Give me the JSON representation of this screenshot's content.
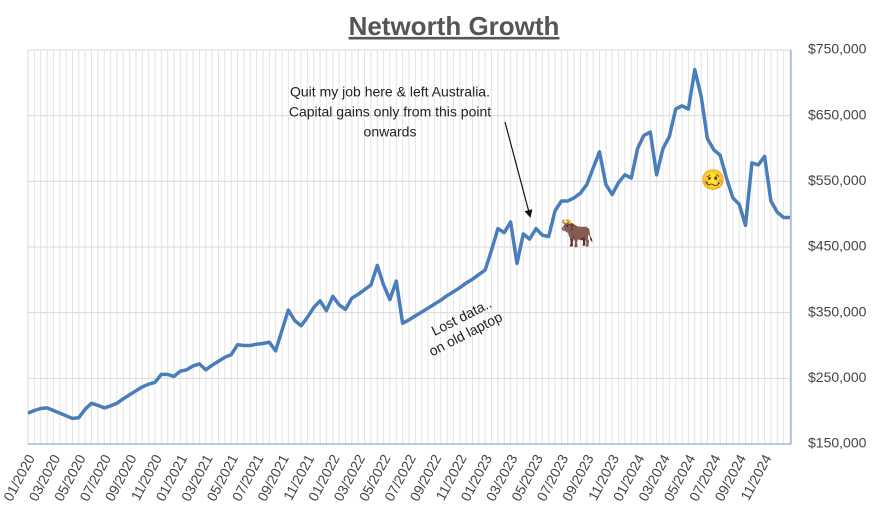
{
  "chart_data": {
    "type": "line",
    "title": "Networth Growth",
    "categories": [
      "01/2020",
      null,
      null,
      null,
      "03/2020",
      null,
      null,
      null,
      "05/2020",
      null,
      null,
      null,
      "07/2020",
      null,
      null,
      null,
      "09/2020",
      null,
      null,
      null,
      "11/2020",
      null,
      null,
      null,
      "01/2021",
      null,
      null,
      null,
      "03/2021",
      null,
      null,
      null,
      "05/2021",
      null,
      null,
      null,
      "07/2021",
      null,
      null,
      null,
      "09/2021",
      null,
      null,
      null,
      "11/2021",
      null,
      null,
      null,
      "01/2022",
      null,
      null,
      null,
      "03/2022",
      null,
      null,
      null,
      "05/2022",
      null,
      null,
      null,
      "07/2022",
      null,
      null,
      null,
      "09/2022",
      null,
      null,
      null,
      "11/2022",
      null,
      null,
      null,
      "01/2023",
      null,
      null,
      null,
      "03/2023",
      null,
      null,
      null,
      "05/2023",
      null,
      null,
      null,
      "07/2023",
      null,
      null,
      null,
      "09/2023",
      null,
      null,
      null,
      "11/2023",
      null,
      null,
      null,
      "01/2024",
      null,
      null,
      null,
      "03/2024",
      null,
      null,
      null,
      "05/2024",
      null,
      null,
      null,
      "07/2024",
      null,
      null,
      null,
      "09/2024",
      null,
      null,
      null,
      "11/2024",
      null,
      null,
      null,
      null
    ],
    "values": [
      197000,
      201000,
      204000,
      205000,
      201000,
      197000,
      193000,
      189000,
      190000,
      203000,
      212000,
      209000,
      205000,
      208000,
      212000,
      219000,
      225000,
      231000,
      237000,
      241000,
      244000,
      256000,
      256000,
      253000,
      261000,
      263000,
      269000,
      272000,
      263000,
      270000,
      276000,
      282000,
      286000,
      301000,
      300000,
      300000,
      302000,
      303000,
      305000,
      292000,
      323000,
      354000,
      338000,
      330000,
      343000,
      358000,
      368000,
      353000,
      375000,
      362000,
      355000,
      372000,
      378000,
      385000,
      392000,
      422000,
      392000,
      370000,
      398000,
      334000,
      339000,
      345000,
      351000,
      357000,
      363000,
      369000,
      376000,
      382000,
      388000,
      395000,
      401000,
      408000,
      415000,
      445000,
      478000,
      472000,
      488000,
      425000,
      470000,
      462000,
      478000,
      468000,
      466000,
      505000,
      520000,
      520000,
      525000,
      532000,
      545000,
      570000,
      595000,
      545000,
      530000,
      548000,
      560000,
      555000,
      600000,
      620000,
      625000,
      560000,
      600000,
      618000,
      660000,
      665000,
      660000,
      720000,
      680000,
      615000,
      598000,
      590000,
      555000,
      525000,
      515000,
      483000,
      578000,
      575000,
      588000,
      520000,
      503000,
      495000,
      495000
    ],
    "color": "#4a7ebb",
    "ylim": [
      150000,
      750000
    ],
    "yticks": [
      {
        "value": 150000,
        "label": "$150,000"
      },
      {
        "value": 250000,
        "label": "$250,000"
      },
      {
        "value": 350000,
        "label": "$350,000"
      },
      {
        "value": 450000,
        "label": "$450,000"
      },
      {
        "value": 550000,
        "label": "$550,000"
      },
      {
        "value": 650000,
        "label": "$650,000"
      },
      {
        "value": 750000,
        "label": "$750,000"
      }
    ],
    "grid": true,
    "annotations": [
      {
        "lines": [
          "Quit my job here & left Australia.",
          "Capital gains only from this point",
          "onwards"
        ]
      },
      {
        "lines": [
          "Lost data..",
          "on old laptop"
        ]
      },
      {
        "lines": [
          "🐂"
        ]
      },
      {
        "lines": [
          "🥴"
        ]
      }
    ]
  }
}
